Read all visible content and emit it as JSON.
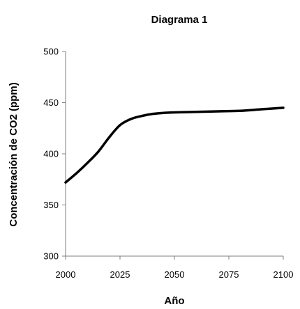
{
  "chart_data": {
    "type": "line",
    "title": "Diagrama 1",
    "xlabel": "Año",
    "ylabel": "Concentración de CO2 (ppm)",
    "xlim": [
      2000,
      2100
    ],
    "ylim": [
      300,
      500
    ],
    "xticks": [
      2000,
      2025,
      2050,
      2075,
      2100
    ],
    "yticks": [
      300,
      350,
      400,
      450,
      500
    ],
    "grid": false,
    "legend": "none",
    "series": [
      {
        "color": "#000000",
        "points": [
          {
            "x": 2000,
            "y": 372
          },
          {
            "x": 2005,
            "y": 381
          },
          {
            "x": 2010,
            "y": 391
          },
          {
            "x": 2015,
            "y": 402
          },
          {
            "x": 2020,
            "y": 416
          },
          {
            "x": 2025,
            "y": 428
          },
          {
            "x": 2030,
            "y": 434
          },
          {
            "x": 2035,
            "y": 437
          },
          {
            "x": 2040,
            "y": 439
          },
          {
            "x": 2045,
            "y": 440
          },
          {
            "x": 2050,
            "y": 440.5
          },
          {
            "x": 2060,
            "y": 441
          },
          {
            "x": 2070,
            "y": 441.5
          },
          {
            "x": 2080,
            "y": 442
          },
          {
            "x": 2090,
            "y": 443.5
          },
          {
            "x": 2100,
            "y": 445
          }
        ]
      }
    ]
  }
}
